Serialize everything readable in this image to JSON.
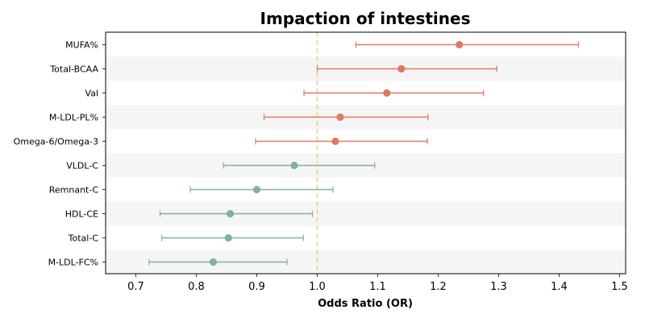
{
  "chart_data": {
    "type": "forest",
    "title": "Impaction of intestines",
    "xlabel": "Odds Ratio (OR)",
    "ylabel": "",
    "xlim": [
      0.65,
      1.51
    ],
    "xticks": [
      0.7,
      0.8,
      0.9,
      1.0,
      1.1,
      1.2,
      1.3,
      1.4,
      1.5
    ],
    "xtick_labels": [
      "0.7",
      "0.8",
      "0.9",
      "1.0",
      "1.1",
      "1.2",
      "1.3",
      "1.4",
      "1.5"
    ],
    "reference_line": 1.0,
    "grid": false,
    "alternating_row_shading": true,
    "colors": {
      "positive": "#e07a5f",
      "negative": "#81b29a",
      "reference": "#f2cc8f",
      "band": "#f5f5f5"
    },
    "rows": [
      {
        "label": "MUFA%",
        "or": 1.235,
        "lo": 1.064,
        "hi": 1.432,
        "group": "positive"
      },
      {
        "label": "Total-BCAA",
        "or": 1.139,
        "lo": 1.0,
        "hi": 1.297,
        "group": "positive"
      },
      {
        "label": "Val",
        "or": 1.115,
        "lo": 0.978,
        "hi": 1.275,
        "group": "positive"
      },
      {
        "label": "M-LDL-PL%",
        "or": 1.038,
        "lo": 0.912,
        "hi": 1.183,
        "group": "positive"
      },
      {
        "label": "Omega-6/Omega-3",
        "or": 1.03,
        "lo": 0.898,
        "hi": 1.182,
        "group": "positive"
      },
      {
        "label": "VLDL-C",
        "or": 0.962,
        "lo": 0.845,
        "hi": 1.095,
        "group": "negative"
      },
      {
        "label": "Remnant-C",
        "or": 0.9,
        "lo": 0.79,
        "hi": 1.026,
        "group": "negative"
      },
      {
        "label": "HDL-CE",
        "or": 0.856,
        "lo": 0.74,
        "hi": 0.992,
        "group": "negative"
      },
      {
        "label": "Total-C",
        "or": 0.853,
        "lo": 0.743,
        "hi": 0.977,
        "group": "negative"
      },
      {
        "label": "M-LDL-FC%",
        "or": 0.828,
        "lo": 0.722,
        "hi": 0.95,
        "group": "negative"
      }
    ]
  }
}
